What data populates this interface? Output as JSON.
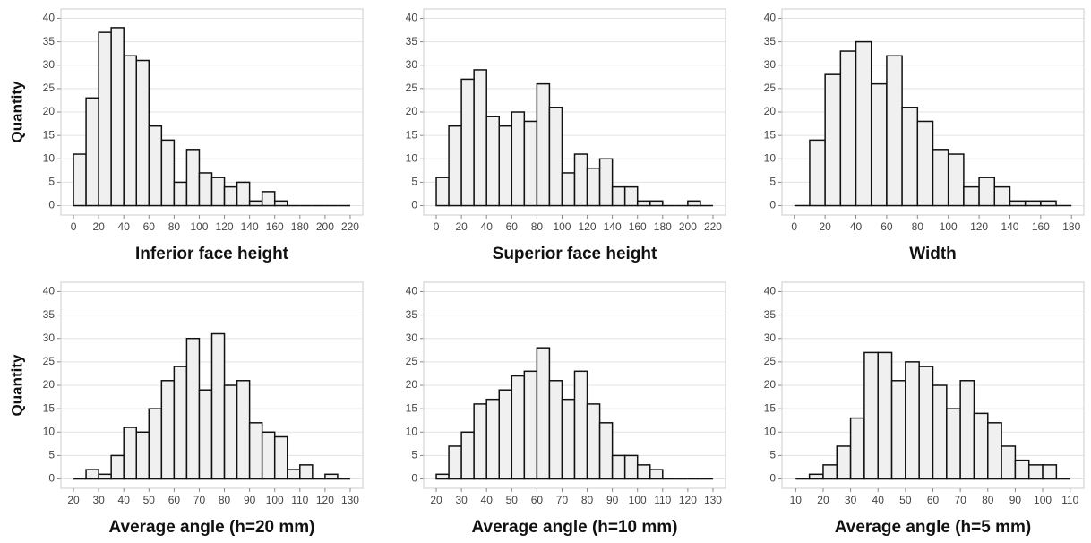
{
  "chart_data": [
    {
      "type": "histogram",
      "xlabel": "Inferior face height",
      "ylabel": "Quantity",
      "bins": [
        0,
        10,
        20,
        30,
        40,
        50,
        60,
        70,
        80,
        90,
        100,
        110,
        120,
        130,
        140,
        150,
        160,
        170,
        180,
        190,
        200,
        210,
        220
      ],
      "counts": [
        11,
        23,
        37,
        38,
        32,
        31,
        17,
        14,
        5,
        12,
        7,
        6,
        4,
        5,
        1,
        3,
        1,
        0,
        0,
        0,
        0,
        0
      ],
      "xlim": [
        -10,
        230
      ],
      "xticks": [
        0,
        20,
        40,
        60,
        80,
        100,
        120,
        140,
        160,
        180,
        200,
        220
      ],
      "ylim": [
        -2,
        42
      ],
      "yticks": [
        0,
        5,
        10,
        15,
        20,
        25,
        30,
        35,
        40
      ],
      "grid": true,
      "color": "#f0f0f0"
    },
    {
      "type": "histogram",
      "xlabel": "Superior face height",
      "bins": [
        0,
        10,
        20,
        30,
        40,
        50,
        60,
        70,
        80,
        90,
        100,
        110,
        120,
        130,
        140,
        150,
        160,
        170,
        180,
        190,
        200,
        210,
        220
      ],
      "counts": [
        6,
        17,
        27,
        29,
        19,
        17,
        20,
        18,
        26,
        21,
        7,
        11,
        8,
        10,
        4,
        4,
        1,
        1,
        0,
        0,
        1,
        0
      ],
      "xlim": [
        -10,
        230
      ],
      "xticks": [
        0,
        20,
        40,
        60,
        80,
        100,
        120,
        140,
        160,
        180,
        200,
        220
      ],
      "ylim": [
        -2,
        42
      ],
      "yticks": [
        0,
        5,
        10,
        15,
        20,
        25,
        30,
        35,
        40
      ],
      "grid": true,
      "color": "#f0f0f0"
    },
    {
      "type": "histogram",
      "xlabel": "Width",
      "bins": [
        0,
        10,
        20,
        30,
        40,
        50,
        60,
        70,
        80,
        90,
        100,
        110,
        120,
        130,
        140,
        150,
        160,
        170,
        180
      ],
      "counts": [
        0,
        14,
        28,
        33,
        35,
        26,
        32,
        21,
        18,
        12,
        11,
        4,
        6,
        4,
        1,
        1,
        1,
        0
      ],
      "xlim": [
        -8,
        188
      ],
      "xticks": [
        0,
        20,
        40,
        60,
        80,
        100,
        120,
        140,
        160,
        180
      ],
      "ylim": [
        -2,
        42
      ],
      "yticks": [
        0,
        5,
        10,
        15,
        20,
        25,
        30,
        35,
        40
      ],
      "grid": true,
      "color": "#f0f0f0"
    },
    {
      "type": "histogram",
      "xlabel": "Average angle (h=20 mm)",
      "ylabel": "Quantity",
      "bins": [
        20,
        25,
        30,
        35,
        40,
        45,
        50,
        55,
        60,
        65,
        70,
        75,
        80,
        85,
        90,
        95,
        100,
        105,
        110,
        115,
        120,
        125,
        130
      ],
      "counts": [
        0,
        2,
        1,
        5,
        11,
        10,
        15,
        21,
        24,
        30,
        19,
        31,
        20,
        21,
        12,
        10,
        9,
        2,
        3,
        0,
        1,
        0
      ],
      "xlim": [
        15,
        135
      ],
      "xticks": [
        20,
        30,
        40,
        50,
        60,
        70,
        80,
        90,
        100,
        110,
        120,
        130
      ],
      "ylim": [
        -2,
        42
      ],
      "yticks": [
        0,
        5,
        10,
        15,
        20,
        25,
        30,
        35,
        40
      ],
      "grid": true,
      "color": "#f0f0f0"
    },
    {
      "type": "histogram",
      "xlabel": "Average angle (h=10 mm)",
      "bins": [
        20,
        25,
        30,
        35,
        40,
        45,
        50,
        55,
        60,
        65,
        70,
        75,
        80,
        85,
        90,
        95,
        100,
        105,
        110,
        115,
        120,
        125,
        130
      ],
      "counts": [
        1,
        7,
        10,
        16,
        17,
        19,
        22,
        23,
        28,
        21,
        17,
        23,
        16,
        12,
        5,
        5,
        3,
        2,
        0,
        0,
        0,
        0
      ],
      "xlim": [
        15,
        135
      ],
      "xticks": [
        20,
        30,
        40,
        50,
        60,
        70,
        80,
        90,
        100,
        110,
        120,
        130
      ],
      "ylim": [
        -2,
        42
      ],
      "yticks": [
        0,
        5,
        10,
        15,
        20,
        25,
        30,
        35,
        40
      ],
      "grid": true,
      "color": "#f0f0f0"
    },
    {
      "type": "histogram",
      "xlabel": "Average angle (h=5 mm)",
      "bins": [
        10,
        15,
        20,
        25,
        30,
        35,
        40,
        45,
        50,
        55,
        60,
        65,
        70,
        75,
        80,
        85,
        90,
        95,
        100,
        105,
        110
      ],
      "counts": [
        0,
        1,
        3,
        7,
        13,
        27,
        27,
        21,
        25,
        24,
        20,
        15,
        21,
        14,
        12,
        7,
        4,
        3,
        3,
        0
      ],
      "xlim": [
        5,
        115
      ],
      "xticks": [
        10,
        20,
        30,
        40,
        50,
        60,
        70,
        80,
        90,
        100,
        110
      ],
      "ylim": [
        -2,
        42
      ],
      "yticks": [
        0,
        5,
        10,
        15,
        20,
        25,
        30,
        35,
        40
      ],
      "grid": true,
      "color": "#f0f0f0"
    }
  ]
}
